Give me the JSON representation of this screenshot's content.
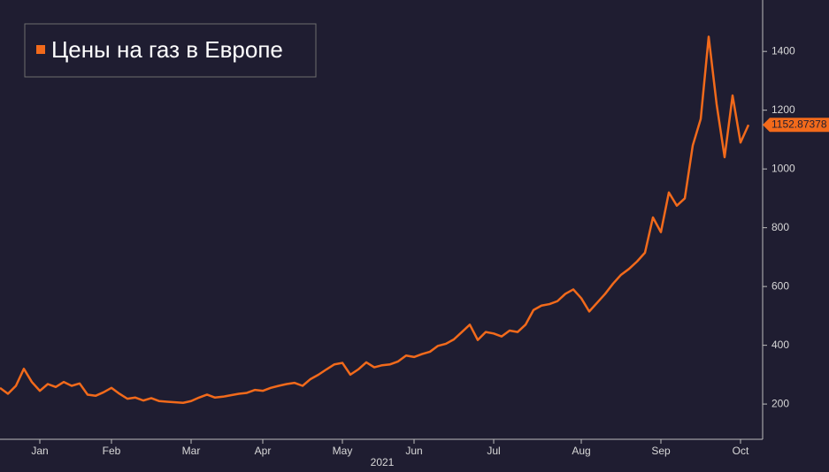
{
  "chart_data": {
    "type": "line",
    "legend_title": "Цены на газ в Европе",
    "x_label": "2021",
    "last_value_label": "1152.87378",
    "categories": [
      null,
      null,
      null,
      null,
      null,
      "Jan",
      null,
      null,
      null,
      null,
      null,
      null,
      null,
      null,
      "Feb",
      null,
      null,
      null,
      null,
      null,
      null,
      null,
      null,
      null,
      "Mar",
      null,
      null,
      null,
      null,
      null,
      null,
      null,
      null,
      "Apr",
      null,
      null,
      null,
      null,
      null,
      null,
      null,
      null,
      null,
      "May",
      null,
      null,
      null,
      null,
      null,
      null,
      null,
      null,
      "Jun",
      null,
      null,
      null,
      null,
      null,
      null,
      null,
      null,
      null,
      "Jul",
      null,
      null,
      null,
      null,
      null,
      null,
      null,
      null,
      null,
      null,
      "Aug",
      null,
      null,
      null,
      null,
      null,
      null,
      null,
      null,
      null,
      "Sep",
      null,
      null,
      null,
      null,
      null,
      null,
      null,
      null,
      null,
      "Oct",
      null
    ],
    "series": [
      {
        "name": "Цены на газ в Европе",
        "color": "#f26a1b",
        "values": [
          255,
          235,
          262,
          320,
          275,
          245,
          268,
          258,
          275,
          262,
          270,
          232,
          228,
          240,
          255,
          235,
          218,
          222,
          212,
          220,
          210,
          208,
          206,
          204,
          210,
          222,
          232,
          222,
          225,
          230,
          235,
          238,
          248,
          245,
          255,
          262,
          268,
          272,
          262,
          285,
          300,
          318,
          335,
          340,
          300,
          318,
          342,
          325,
          332,
          335,
          345,
          365,
          360,
          370,
          378,
          398,
          405,
          420,
          445,
          470,
          418,
          445,
          440,
          430,
          450,
          445,
          470,
          520,
          535,
          540,
          550,
          575,
          590,
          560,
          515,
          545,
          575,
          610,
          640,
          660,
          685,
          715,
          835,
          785,
          920,
          875,
          900,
          1080,
          1170,
          1450,
          1220,
          1040,
          1250,
          1090,
          1150
        ]
      }
    ],
    "ylim": [
      80,
      1575
    ],
    "yticks": [
      200,
      400,
      600,
      800,
      1000,
      1200,
      1400
    ],
    "grid": false,
    "legend": "top-left"
  }
}
